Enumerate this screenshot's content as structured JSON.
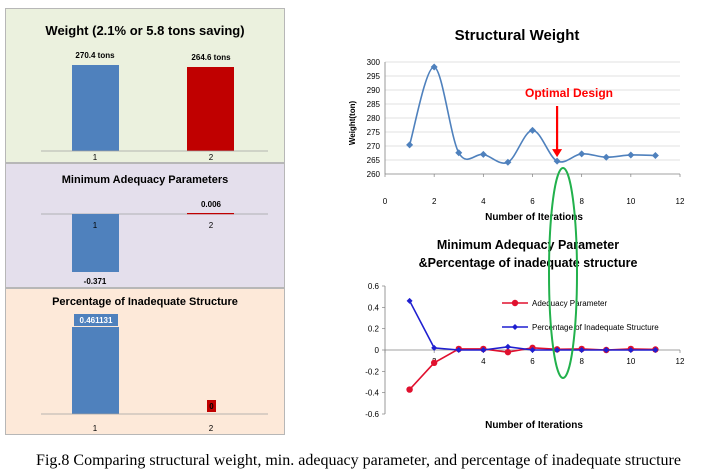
{
  "caption": "Fig.8 Comparing structural weight, min. adequacy parameter, and percentage of inadequate structure",
  "colors": {
    "blue_bar": "#4f81bd",
    "red_bar": "#c00000",
    "line_blue": "#4f81bd",
    "line_red": "#e0102e",
    "line_navy": "#1f1fd0",
    "annotation": "#ff0000",
    "ellipse": "#22b14c"
  },
  "chart_data": [
    {
      "type": "bar",
      "title": "Weight (2.1% or 5.8 tons saving)",
      "categories": [
        "1",
        "2"
      ],
      "values": [
        270.4,
        264.6
      ],
      "data_labels": [
        "270.4 tons",
        "264.6 tons"
      ],
      "colors": [
        "#4f81bd",
        "#c00000"
      ],
      "background": "#ebf1de"
    },
    {
      "type": "bar",
      "title": "Minimum Adequacy Parameters",
      "categories": [
        "1",
        "2"
      ],
      "values": [
        -0.371,
        0.006
      ],
      "data_labels": [
        "-0.371",
        "0.006"
      ],
      "colors": [
        "#4f81bd",
        "#c00000"
      ],
      "background": "#e4dfec"
    },
    {
      "type": "bar",
      "title": "Percentage of Inadequate Structure",
      "categories": [
        "1",
        "2"
      ],
      "values": [
        0.461131,
        0
      ],
      "data_labels": [
        "0.461131",
        "0"
      ],
      "colors": [
        "#4f81bd",
        "#c00000"
      ],
      "background": "#fde9d9"
    },
    {
      "type": "line",
      "title": "Structural Weight",
      "xlabel": "Number of Iterations",
      "ylabel": "Weight(ton)",
      "xlim": [
        0,
        12
      ],
      "ylim": [
        260,
        300
      ],
      "xticks": [
        0,
        2,
        4,
        6,
        8,
        10,
        12
      ],
      "yticks": [
        260,
        265,
        270,
        275,
        280,
        285,
        290,
        295,
        300
      ],
      "series": [
        {
          "x": [
            1,
            2,
            3,
            4,
            5,
            6,
            7,
            8,
            9,
            10,
            11
          ],
          "values": [
            270.4,
            298.2,
            267.6,
            267.0,
            264.2,
            275.6,
            264.6,
            267.2,
            266.0,
            266.8,
            266.6
          ],
          "color": "#4f81bd"
        }
      ],
      "annotation": {
        "label": "Optimal Design",
        "x": 7
      }
    },
    {
      "type": "line",
      "title": "Minimum Adequacy Parameter &Percentage of inadequate structure",
      "xlabel": "Number of Iterations",
      "xlim": [
        0,
        12
      ],
      "ylim": [
        -0.6,
        0.6
      ],
      "xticks": [
        0,
        2,
        4,
        6,
        8,
        10,
        12
      ],
      "yticks": [
        -0.6,
        -0.4,
        -0.2,
        0,
        0.2,
        0.4,
        0.6
      ],
      "series": [
        {
          "name": "Adequacy  Parameter",
          "x": [
            1,
            2,
            3,
            4,
            5,
            6,
            7,
            8,
            9,
            10,
            11
          ],
          "values": [
            -0.371,
            -0.12,
            0.01,
            0.01,
            -0.02,
            0.02,
            0.006,
            0.01,
            0.0,
            0.01,
            0.005
          ],
          "color": "#e0102e"
        },
        {
          "name": "Percentage of Inadequate Structure",
          "x": [
            1,
            2,
            3,
            4,
            5,
            6,
            7,
            8,
            9,
            10,
            11
          ],
          "values": [
            0.461131,
            0.02,
            0.0,
            0.0,
            0.03,
            0.0,
            0.0,
            0.0,
            0.0,
            0.0,
            0.0
          ],
          "color": "#1f1fd0"
        }
      ],
      "legend": "inside-right"
    }
  ]
}
